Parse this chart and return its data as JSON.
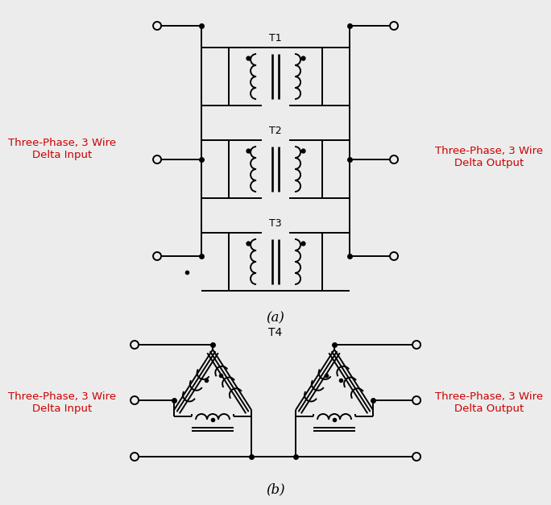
{
  "title_a": "(a)",
  "title_b": "(b)",
  "label_input": "Three-Phase, 3 Wire\nDelta Input",
  "label_output": "Three-Phase, 3 Wire\nDelta Output",
  "label_t1": "T1",
  "label_t2": "T2",
  "label_t3": "T3",
  "label_t4": "T4",
  "line_color": "#000000",
  "label_color": "#cc0000",
  "bg_color": "#ececec",
  "lw": 1.4
}
